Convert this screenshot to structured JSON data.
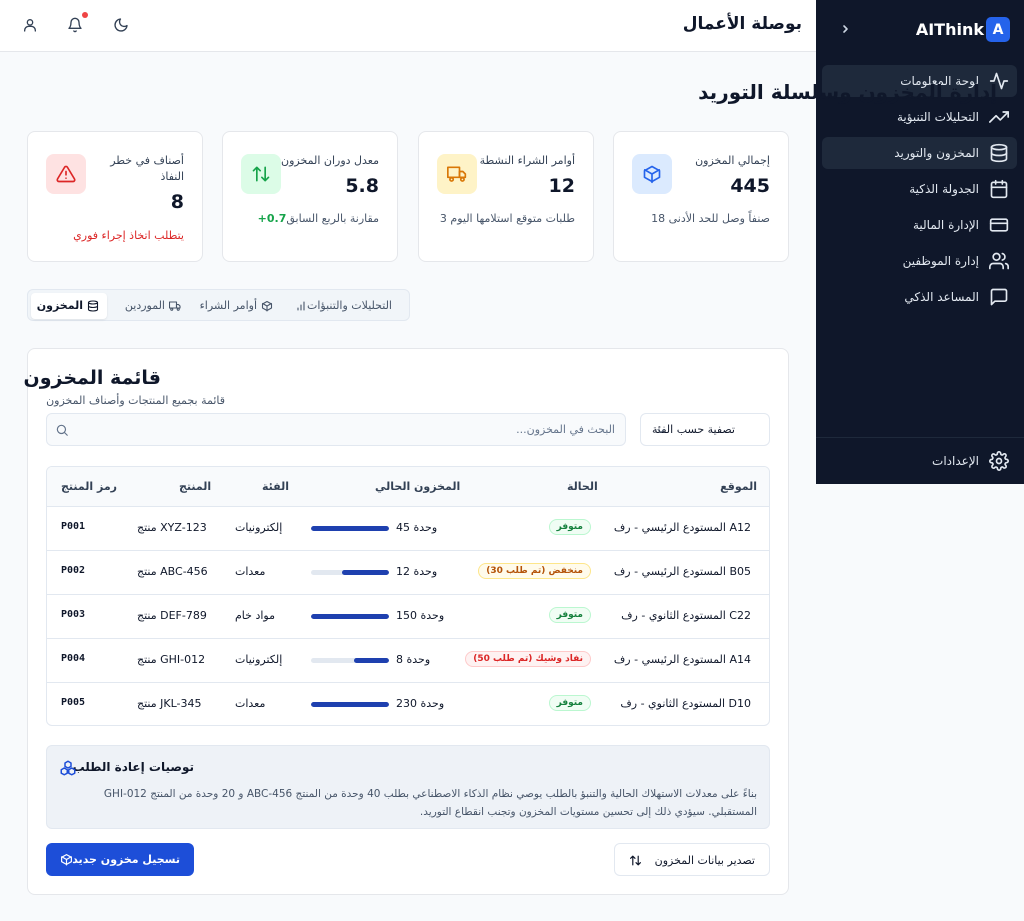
{
  "sidebar": {
    "logo_letter": "A",
    "brand": "AIThink",
    "items": [
      {
        "label": "لوحة المعلومات",
        "icon": "activity-icon",
        "active": true
      },
      {
        "label": "التحليلات التنبؤية",
        "icon": "trending-up-icon",
        "active": false
      },
      {
        "label": "المخزون والتوريد",
        "icon": "database-icon",
        "active": true
      },
      {
        "label": "الجدولة الذكية",
        "icon": "calendar-icon",
        "active": false
      },
      {
        "label": "الإدارة المالية",
        "icon": "credit-card-icon",
        "active": false
      },
      {
        "label": "إدارة الموظفين",
        "icon": "users-icon",
        "active": false
      },
      {
        "label": "المساعد الذكي",
        "icon": "message-square-icon",
        "active": false
      }
    ],
    "settings_label": "الإعدادات"
  },
  "header": {
    "title": "بوصلة الأعمال"
  },
  "page": {
    "title": "إدارة المخزون وسلسلة التوريد"
  },
  "stats": [
    {
      "title": "إجمالي المخزون",
      "value": "445",
      "footer": "18 صنفاً وصل للحد الأدنى",
      "icon": "package-icon",
      "color": "#2563eb"
    },
    {
      "title": "أوامر الشراء النشطة",
      "value": "12",
      "footer": "3 طلبات متوقع استلامها اليوم",
      "icon": "truck-icon",
      "color": "#d97706"
    },
    {
      "title": "معدل دوران المخزون",
      "value": "5.8",
      "footer_delta": "+0.7",
      "footer": "مقارنة بالربع السابق",
      "icon": "arrows-up-down-icon",
      "color": "#16a34a"
    },
    {
      "title": "أصناف في خطر النفاذ",
      "value": "8",
      "footer": "يتطلب اتخاذ إجراء فوري",
      "icon": "alert-triangle-icon",
      "color": "#dc2626"
    }
  ],
  "tabs": [
    {
      "label": "المخزون",
      "icon": "database-icon",
      "active": true
    },
    {
      "label": "الموردين",
      "icon": "truck-icon",
      "active": false
    },
    {
      "label": "أوامر الشراء",
      "icon": "package-icon",
      "active": false
    },
    {
      "label": "التحليلات والتنبؤات",
      "icon": "bar-chart-icon",
      "active": false
    }
  ],
  "inventory": {
    "title": "قائمة المخزون",
    "subtitle": "قائمة بجميع المنتجات وأصناف المخزون",
    "search_placeholder": "البحث في المخزون...",
    "filter_label": "تصفية حسب الفئة",
    "columns": [
      "رمز المنتج",
      "المنتج",
      "الفئة",
      "المخزون الحالي",
      "الحالة",
      "الموقع"
    ],
    "rows": [
      {
        "code": "P001",
        "product": "منتج XYZ-123",
        "category": "إلكترونيات",
        "stock": "45 وحدة",
        "level": 1.0,
        "status": "متوفر",
        "status_kind": "ok",
        "location": "المستودع الرئيسي - رف A12"
      },
      {
        "code": "P002",
        "product": "منتج ABC-456",
        "category": "معدات",
        "stock": "12 وحدة",
        "level": 0.6,
        "status": "منخفض (تم طلب 30)",
        "status_kind": "warn",
        "location": "المستودع الرئيسي - رف B05"
      },
      {
        "code": "P003",
        "product": "منتج DEF-789",
        "category": "مواد خام",
        "stock": "150 وحدة",
        "level": 1.0,
        "status": "متوفر",
        "status_kind": "ok",
        "location": "المستودع الثانوي - رف C22"
      },
      {
        "code": "P004",
        "product": "منتج GHI-012",
        "category": "إلكترونيات",
        "stock": "8 وحدة",
        "level": 0.45,
        "status": "نفاد وشيك (تم طلب 50)",
        "status_kind": "crit",
        "location": "المستودع الرئيسي - رف A14"
      },
      {
        "code": "P005",
        "product": "منتج JKL-345",
        "category": "معدات",
        "stock": "230 وحدة",
        "level": 1.0,
        "status": "متوفر",
        "status_kind": "ok",
        "location": "المستودع الثانوي - رف D10"
      }
    ]
  },
  "recommendations": {
    "title": "توصيات إعادة الطلب",
    "text": "بناءً على معدلات الاستهلاك الحالية والتنبؤ بالطلب يوصي نظام الذكاء الاصطناعي بطلب 40 وحدة من المنتج ABC-456 و 20 وحدة من المنتج GHI-012 المستقبلي. سيؤدي ذلك إلى تحسين مستويات المخزون وتجنب انقطاع التوريد."
  },
  "actions": {
    "export_label": "تصدير بيانات المخزون",
    "new_label": "تسجيل مخزون جديد"
  },
  "colors": {
    "sidebar_bg": "#0f172a",
    "accent": "#1d4ed8",
    "notification": "#ef4444"
  }
}
